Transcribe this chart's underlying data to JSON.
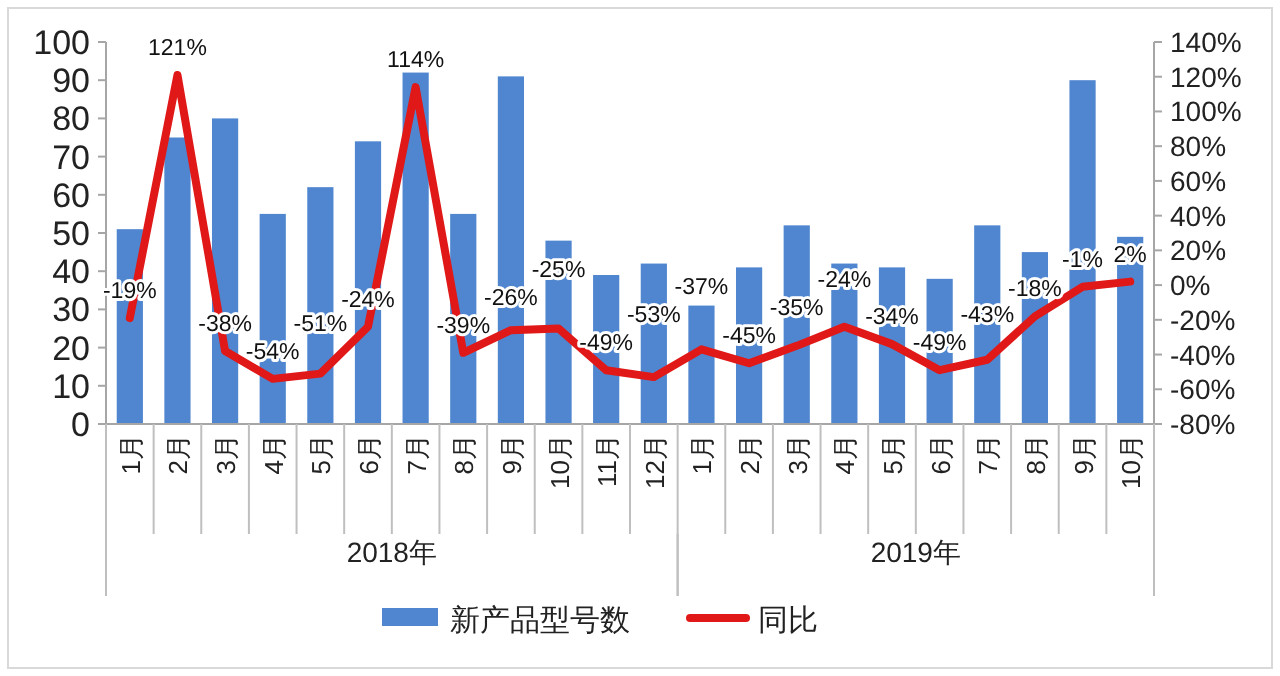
{
  "chart_data": {
    "type": "bar",
    "categories": [
      "1月",
      "2月",
      "3月",
      "4月",
      "5月",
      "6月",
      "7月",
      "8月",
      "9月",
      "10月",
      "11月",
      "12月",
      "1月",
      "2月",
      "3月",
      "4月",
      "5月",
      "6月",
      "7月",
      "8月",
      "9月",
      "10月"
    ],
    "series": [
      {
        "name": "新产品型号数",
        "color": "#4f86cf",
        "values": [
          51,
          75,
          80,
          55,
          62,
          74,
          92,
          55,
          91,
          48,
          39,
          42,
          31,
          41,
          52,
          42,
          41,
          38,
          52,
          45,
          90,
          49
        ]
      },
      {
        "name": "同比",
        "type": "line",
        "axis": "y2",
        "color": "#e01818",
        "values": [
          -19,
          121,
          -38,
          -54,
          -51,
          -24,
          114,
          -39,
          -26,
          -25,
          -49,
          -53,
          -37,
          -45,
          -35,
          -24,
          -34,
          -49,
          -43,
          -18,
          -1,
          2
        ],
        "value_labels": [
          "-19%",
          "121%",
          "-38%",
          "-54%",
          "-51%",
          "-24%",
          "114%",
          "-39%",
          "-26%",
          "-25%",
          "-49%",
          "-53%",
          "-37%",
          "-45%",
          "-35%",
          "-24%",
          "-34%",
          "-49%",
          "-43%",
          "-18%",
          "-1%",
          "2%"
        ]
      }
    ],
    "ylim": [
      0,
      100
    ],
    "yticks": [
      0,
      10,
      20,
      30,
      40,
      50,
      60,
      70,
      80,
      90,
      100
    ],
    "y2lim": [
      -80,
      140
    ],
    "y2ticks": [
      {
        "value": -80,
        "label": "-80%"
      },
      {
        "value": -60,
        "label": "-60%"
      },
      {
        "value": -40,
        "label": "-40%"
      },
      {
        "value": -20,
        "label": "-20%"
      },
      {
        "value": 0,
        "label": "0%"
      },
      {
        "value": 20,
        "label": "20%"
      },
      {
        "value": 40,
        "label": "40%"
      },
      {
        "value": 60,
        "label": "60%"
      },
      {
        "value": 80,
        "label": "80%"
      },
      {
        "value": 100,
        "label": "100%"
      },
      {
        "value": 120,
        "label": "120%"
      },
      {
        "value": 140,
        "label": "140%"
      }
    ],
    "annotations": [
      "2018年",
      "2019年"
    ],
    "legend": "bottom",
    "grid": false
  }
}
